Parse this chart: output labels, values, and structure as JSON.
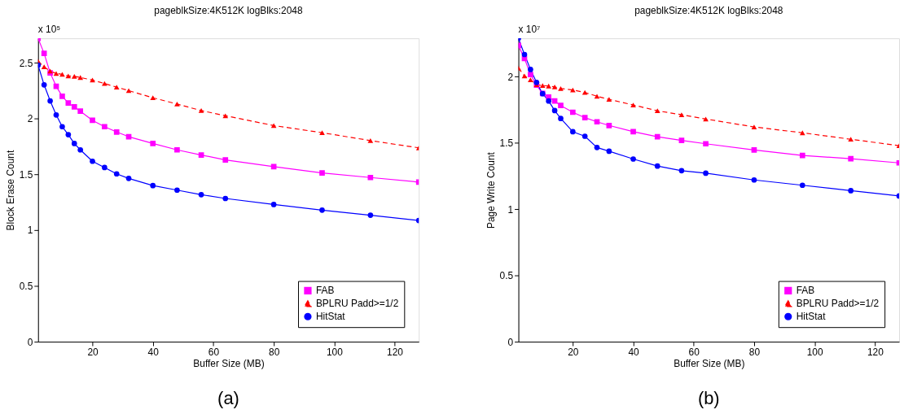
{
  "chart_data": [
    {
      "type": "line",
      "title": "pageblkSize:4K512K logBlks:2048",
      "xlabel": "Buffer Size (MB)",
      "ylabel": "Block Erase Count",
      "x": [
        2,
        4,
        6,
        8,
        10,
        12,
        14,
        16,
        20,
        24,
        28,
        32,
        40,
        48,
        56,
        64,
        80,
        96,
        112,
        128
      ],
      "xlim": [
        2,
        128
      ],
      "xticks": [
        20,
        40,
        60,
        80,
        100,
        120
      ],
      "ylim": [
        0,
        2.72
      ],
      "yticks": [
        0,
        0.5,
        1,
        1.5,
        2,
        2.5
      ],
      "grid": false,
      "legend": "bottom right",
      "annotations": [
        "x 10⁵",
        "(a)"
      ],
      "series": [
        {
          "name": "FAB",
          "color": "#ff00ff",
          "marker": "square",
          "line_style": "solid",
          "values": [
            2.72,
            2.585,
            2.41,
            2.29,
            2.2,
            2.14,
            2.105,
            2.067,
            1.985,
            1.928,
            1.88,
            1.838,
            1.777,
            1.72,
            1.674,
            1.63,
            1.569,
            1.513,
            1.472,
            1.431
          ]
        },
        {
          "name": "BPLRU Padd>=1/2",
          "color": "#ff0000",
          "marker": "triangle",
          "line_style": "dashed",
          "values": [
            2.515,
            2.464,
            2.426,
            2.405,
            2.397,
            2.382,
            2.379,
            2.369,
            2.346,
            2.315,
            2.282,
            2.251,
            2.187,
            2.131,
            2.072,
            2.026,
            1.938,
            1.874,
            1.803,
            1.738
          ]
        },
        {
          "name": "HitStat",
          "color": "#0000ff",
          "marker": "circle",
          "line_style": "solid",
          "values": [
            2.48,
            2.303,
            2.159,
            2.033,
            1.928,
            1.856,
            1.777,
            1.72,
            1.618,
            1.562,
            1.505,
            1.464,
            1.4,
            1.359,
            1.318,
            1.284,
            1.23,
            1.18,
            1.134,
            1.087
          ]
        }
      ]
    },
    {
      "type": "line",
      "title": "pageblkSize:4K512K logBlks:2048",
      "xlabel": "Buffer Size (MB)",
      "ylabel": "Page Write Count",
      "x": [
        2,
        4,
        6,
        8,
        10,
        12,
        14,
        16,
        20,
        24,
        28,
        32,
        40,
        48,
        56,
        64,
        80,
        96,
        112,
        128
      ],
      "xlim": [
        2,
        128
      ],
      "xticks": [
        20,
        40,
        60,
        80,
        100,
        120
      ],
      "ylim": [
        0,
        2.29
      ],
      "yticks": [
        0,
        0.5,
        1,
        1.5,
        2
      ],
      "grid": false,
      "legend": "bottom right",
      "annotations": [
        "x 10⁷",
        "(b)"
      ],
      "series": [
        {
          "name": "FAB",
          "color": "#ff00ff",
          "marker": "square",
          "line_style": "solid",
          "values": [
            2.236,
            2.138,
            2.017,
            1.936,
            1.874,
            1.847,
            1.817,
            1.783,
            1.732,
            1.691,
            1.66,
            1.632,
            1.585,
            1.547,
            1.519,
            1.494,
            1.447,
            1.406,
            1.381,
            1.35
          ]
        },
        {
          "name": "BPLRU Padd>=1/2",
          "color": "#ff0000",
          "marker": "triangle",
          "line_style": "dashed",
          "values": [
            2.066,
            2.006,
            1.977,
            1.94,
            1.934,
            1.93,
            1.923,
            1.911,
            1.9,
            1.881,
            1.853,
            1.829,
            1.787,
            1.743,
            1.713,
            1.681,
            1.621,
            1.577,
            1.528,
            1.48
          ]
        },
        {
          "name": "HitStat",
          "color": "#0000ff",
          "marker": "circle",
          "line_style": "solid",
          "values": [
            2.29,
            2.168,
            2.055,
            1.957,
            1.872,
            1.817,
            1.745,
            1.685,
            1.585,
            1.551,
            1.466,
            1.438,
            1.379,
            1.326,
            1.291,
            1.272,
            1.221,
            1.181,
            1.14,
            1.1
          ]
        }
      ]
    }
  ]
}
